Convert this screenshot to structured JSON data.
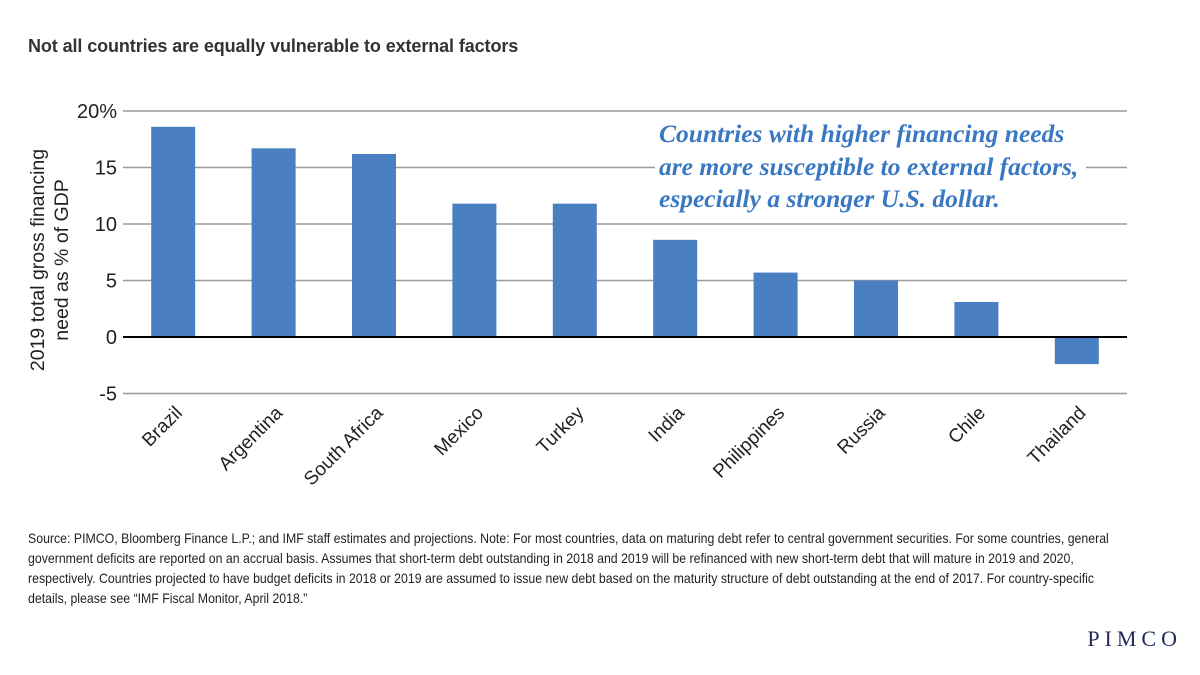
{
  "title": "Not all countries are equally vulnerable to external factors",
  "annotation": {
    "lines": [
      "Countries with higher financing needs",
      "are more susceptible to external factors,",
      "especially a stronger U.S. dollar."
    ]
  },
  "source": "Source: PIMCO, Bloomberg Finance L.P.; and IMF staff estimates and projections. Note: For most countries, data on maturing debt refer to central government securities. For some countries, general government deficits are reported on an accrual basis. Assumes that short-term debt outstanding in 2018 and 2019 will be refinanced with new short-term debt that will mature in 2019 and 2020, respectively. Countries projected to have budget deficits in 2018 or 2019 are assumed to issue new debt based on the maturity structure of debt outstanding at the end of 2017. For country-specific details, please see “IMF Fiscal Monitor, April 2018.”",
  "logo": "PIMCO",
  "colors": {
    "bar": "#4a7fc1",
    "annotation": "#3a78c3",
    "grid": "#9a9a9a",
    "zero_line": "#000000"
  },
  "chart_data": {
    "type": "bar",
    "title": "Not all countries are equally vulnerable to external factors",
    "xlabel": "",
    "ylabel_lines": [
      "2019 total gross financing",
      "need as % of GDP"
    ],
    "categories": [
      "Brazil",
      "Argentina",
      "South Africa",
      "Mexico",
      "Turkey",
      "India",
      "Philippines",
      "Russia",
      "Chile",
      "Thailand"
    ],
    "values": [
      18.6,
      16.7,
      16.2,
      11.8,
      11.8,
      8.6,
      5.7,
      5.0,
      3.1,
      -2.4
    ],
    "ylim": [
      -5,
      20
    ],
    "yticks": [
      20,
      15,
      10,
      5,
      0,
      -5
    ],
    "ytick_labels": [
      "20%",
      "15",
      "10",
      "5",
      "0",
      "-5"
    ],
    "grid": true,
    "legend": "none"
  }
}
